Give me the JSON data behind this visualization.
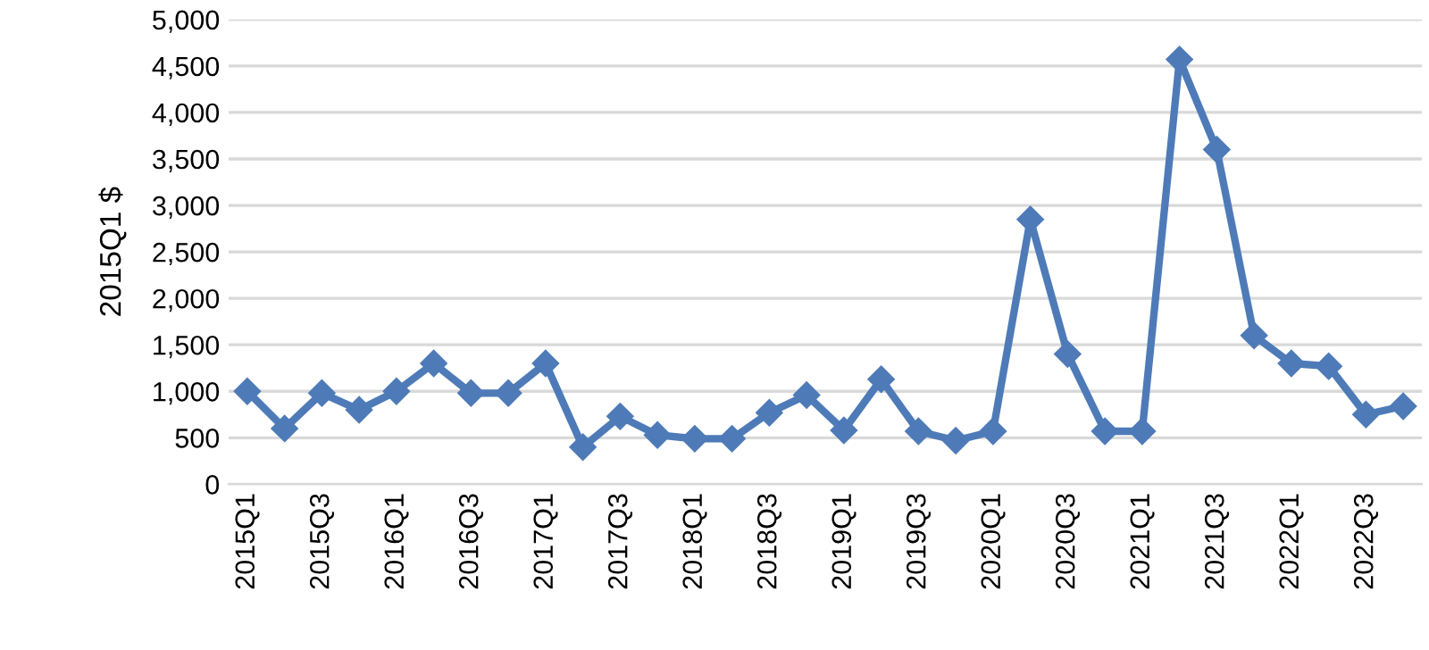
{
  "chart_data": {
    "type": "line",
    "ylabel": "2015Q1 $",
    "categories": [
      "2015Q1",
      null,
      "2015Q3",
      null,
      "2016Q1",
      null,
      "2016Q3",
      null,
      "2017Q1",
      null,
      "2017Q3",
      null,
      "2018Q1",
      null,
      "2018Q3",
      null,
      "2019Q1",
      null,
      "2019Q3",
      null,
      "2020Q1",
      null,
      "2020Q3",
      null,
      "2021Q1",
      null,
      "2021Q3",
      null,
      "2022Q1",
      null,
      "2022Q3",
      null
    ],
    "series": [
      {
        "color": "#4e7bb8",
        "values": [
          1000,
          600,
          980,
          800,
          1000,
          1300,
          980,
          980,
          1300,
          400,
          730,
          530,
          490,
          490,
          770,
          960,
          580,
          1130,
          570,
          470,
          570,
          2850,
          1400,
          570,
          570,
          4570,
          3600,
          1600,
          1300,
          1270,
          750,
          840
        ]
      }
    ],
    "ylim": [
      0,
      5000
    ],
    "yticks": [
      {
        "value": 0,
        "label": "0"
      },
      {
        "value": 500,
        "label": "500"
      },
      {
        "value": 1000,
        "label": "1,000"
      },
      {
        "value": 1500,
        "label": "1,500"
      },
      {
        "value": 2000,
        "label": "2,000"
      },
      {
        "value": 2500,
        "label": "2,500"
      },
      {
        "value": 3000,
        "label": "3,000"
      },
      {
        "value": 3500,
        "label": "3,500"
      },
      {
        "value": 4000,
        "label": "4,000"
      },
      {
        "value": 4500,
        "label": "4,500"
      },
      {
        "value": 5000,
        "label": "5,000"
      }
    ],
    "grid": "y",
    "marker": "diamond",
    "line_style": "solid",
    "legend": false
  }
}
